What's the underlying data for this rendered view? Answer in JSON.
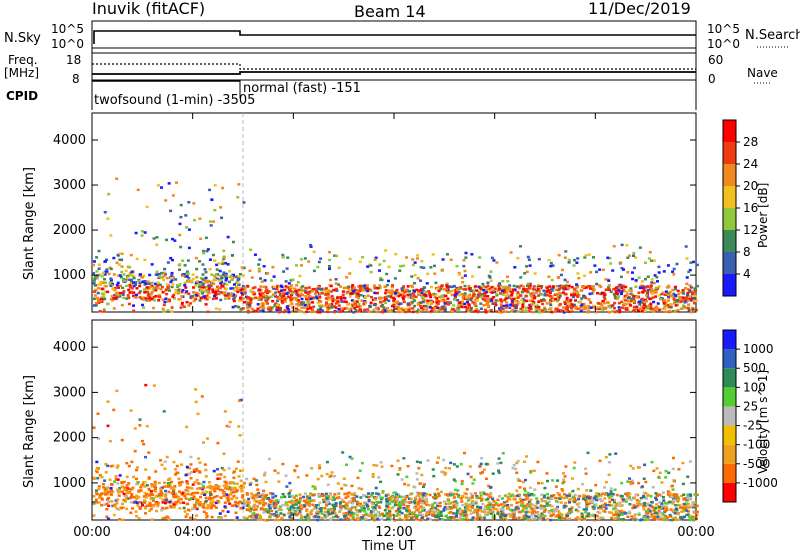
{
  "header": {
    "station": "Inuvik (fitACF)",
    "beam": "Beam 14",
    "date": "11/Dec/2019"
  },
  "top_labels": {
    "nsky": "N.Sky",
    "nsky_tick_hi": "10^5",
    "nsky_tick_lo": "10^0",
    "nsearch": "N.Search",
    "nsearch_tick_hi": "10^5",
    "nsearch_tick_lo": "10^0",
    "freq_title": "Freq.",
    "freq_unit": "[MHz]",
    "freq_tick_hi": "18",
    "freq_tick_lo": "8",
    "nave": "Nave",
    "nave_tick_hi": "60",
    "nave_tick_lo": "0",
    "cpid": "CPID",
    "cpid_mode_1": "twofsound (1-min) -3505",
    "cpid_mode_2": "normal (fast) -151"
  },
  "colors": {
    "power_scale": [
      "#1a1aff",
      "#3a5fb0",
      "#3c8a5a",
      "#8fc83a",
      "#f0c020",
      "#f08a20",
      "#f03a10",
      "#ff0000"
    ],
    "velocity_scale": [
      "#ff0000",
      "#ff6a00",
      "#f0a020",
      "#f0c000",
      "#bbbbbb",
      "#55cc33",
      "#2e8b57",
      "#3060c0",
      "#1a1aff"
    ]
  },
  "chart_data": [
    {
      "type": "heatmap",
      "title": "Power",
      "ylabel": "Slant Range [km]",
      "xlabel": "Time UT",
      "x_ticks": [
        "00:00",
        "04:00",
        "08:00",
        "12:00",
        "16:00",
        "20:00",
        "00:00"
      ],
      "y_ticks": [
        1000,
        2000,
        3000,
        4000
      ],
      "ylim": [
        180,
        4600
      ],
      "xlim": [
        "00:00",
        "24:00"
      ],
      "colorbar_label": "Power [dB]",
      "colorbar_ticks": [
        4,
        8,
        12,
        16,
        20,
        24,
        28
      ]
    },
    {
      "type": "heatmap",
      "title": "Velocity",
      "ylabel": "Slant Range [km]",
      "xlabel": "Time UT",
      "x_ticks": [
        "00:00",
        "04:00",
        "08:00",
        "12:00",
        "16:00",
        "20:00",
        "00:00"
      ],
      "y_ticks": [
        1000,
        2000,
        3000,
        4000
      ],
      "ylim": [
        180,
        4600
      ],
      "xlim": [
        "00:00",
        "24:00"
      ],
      "colorbar_label": "Velocity [m s^-1]",
      "colorbar_ticks": [
        1000,
        500,
        100,
        25,
        -25,
        -100,
        -500,
        -1000
      ]
    }
  ]
}
